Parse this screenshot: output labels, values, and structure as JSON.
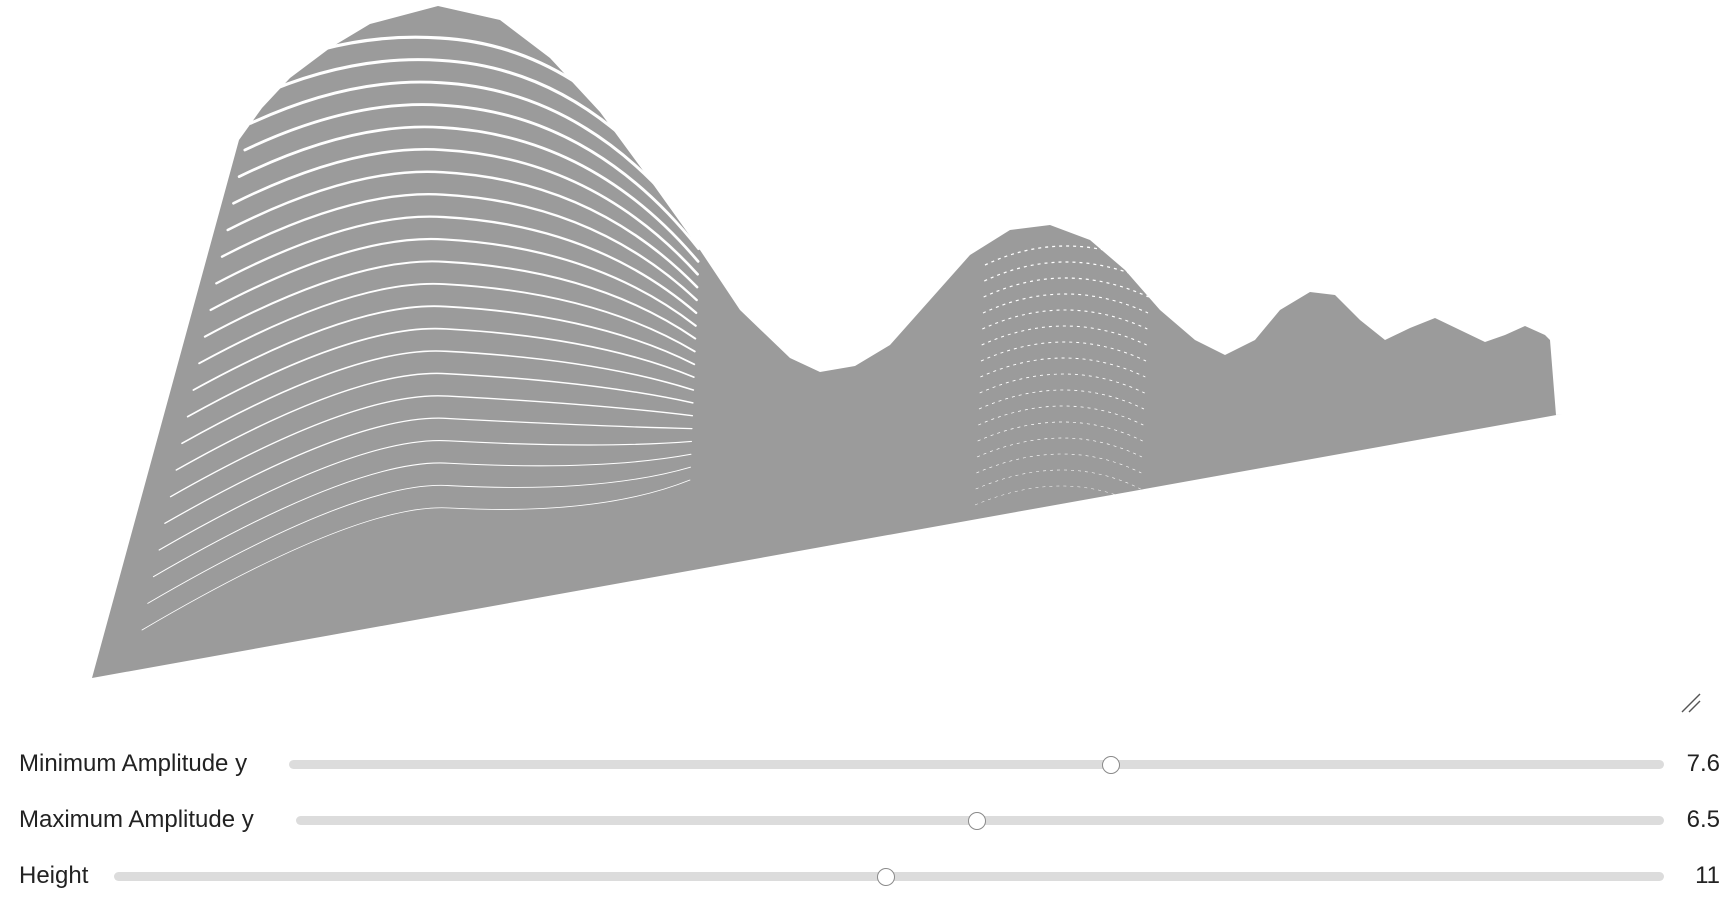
{
  "plot": {
    "surface_color": "#9b9b9b",
    "background": "#ffffff",
    "resize_icon": "resize-grip-icon"
  },
  "controls": [
    {
      "label": "Minimum Amplitude y",
      "value": "7.6",
      "fraction": 0.598
    },
    {
      "label": "Maximum Amplitude y",
      "value": "6.5",
      "fraction": 0.498
    },
    {
      "label": "Height",
      "value": "11",
      "fraction": 0.498
    }
  ],
  "slider": {
    "track_color": "#dcdcdc",
    "thumb_border": "#8a8a8a"
  }
}
